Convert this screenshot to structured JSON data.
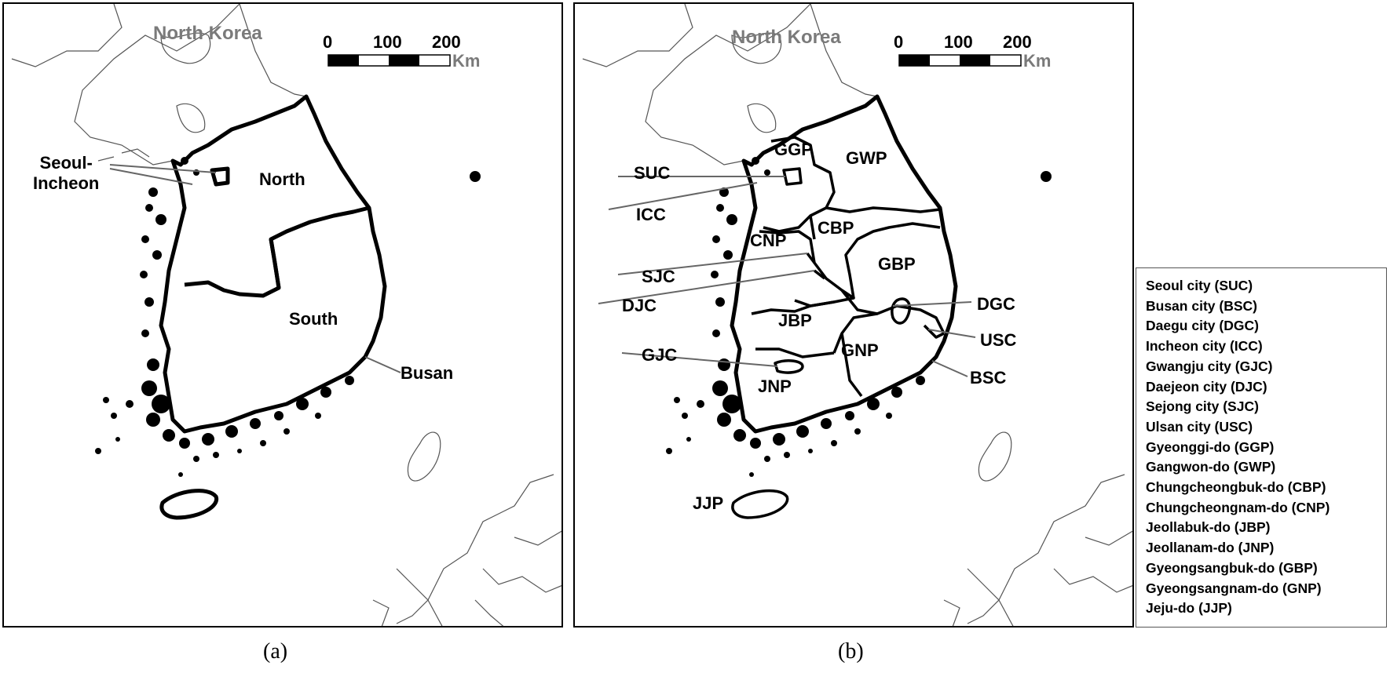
{
  "panel_a": {
    "caption": "(a)",
    "neighbor_label": "North Korea",
    "region_labels": {
      "seoul_incheon": "Seoul-\nIncheon",
      "north": "North",
      "south": "South",
      "busan": "Busan"
    },
    "scale": {
      "ticks": [
        "0",
        "100",
        "200"
      ],
      "unit": "Km"
    }
  },
  "panel_b": {
    "caption": "(b)",
    "neighbor_label": "North Korea",
    "region_labels": {
      "suc": "SUC",
      "icc": "ICC",
      "sjc": "SJC",
      "djc": "DJC",
      "gjc": "GJC",
      "jjp": "JJP",
      "ggp": "GGP",
      "gwp": "GWP",
      "cnp": "CNP",
      "cbp": "CBP",
      "gbp": "GBP",
      "jbp": "JBP",
      "gnp": "GNP",
      "jnp": "JNP",
      "dgc": "DGC",
      "usc": "USC",
      "bsc": "BSC"
    },
    "scale": {
      "ticks": [
        "0",
        "100",
        "200"
      ],
      "unit": "Km"
    }
  },
  "legend": {
    "items": [
      "Seoul city (SUC)",
      "Busan city (BSC)",
      "Daegu city (DGC)",
      "Incheon city (ICC)",
      "Gwangju city (GJC)",
      "Daejeon city (DJC)",
      "Sejong city (SJC)",
      "Ulsan city (USC)",
      "Gyeonggi-do (GGP)",
      "Gangwon-do (GWP)",
      "Chungcheongbuk-do (CBP)",
      "Chungcheongnam-do (CNP)",
      "Jeollabuk-do (JBP)",
      "Jeollanam-do (JNP)",
      "Gyeongsangbuk-do (GBP)",
      "Gyeongsangnam-do (GNP)",
      "Jeju-do (JJP)"
    ]
  },
  "colors": {
    "boundary": "#000000",
    "neighbor_outline": "#555555",
    "grey_label": "#7a7a7a",
    "leader_line": "#666666"
  }
}
